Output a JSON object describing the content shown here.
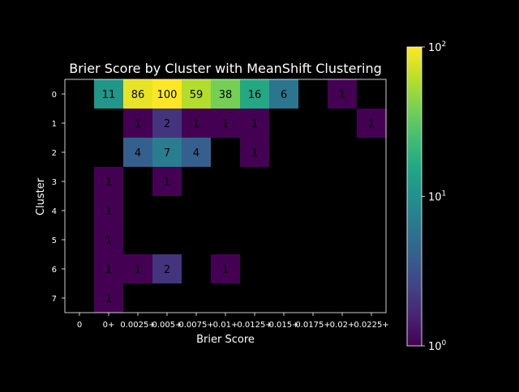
{
  "chart_data": {
    "type": "heatmap",
    "title": "Brier Score by Cluster with MeanShift Clustering",
    "xlabel": "Brier Score",
    "ylabel": "Cluster",
    "x_categories": [
      "0",
      "0+",
      "0.0025+",
      "0.005+",
      "0.0075+",
      "0.01+",
      "0.0125+",
      "0.015+",
      "0.0175+",
      "0.02+",
      "0.0225+"
    ],
    "y_categories": [
      "0",
      "1",
      "2",
      "3",
      "4",
      "5",
      "6",
      "7"
    ],
    "values": [
      [
        0,
        11,
        86,
        100,
        59,
        38,
        16,
        6,
        0,
        1,
        0
      ],
      [
        0,
        0,
        1,
        2,
        1,
        1,
        1,
        0,
        0,
        0,
        1
      ],
      [
        0,
        0,
        4,
        7,
        4,
        0,
        1,
        0,
        0,
        0,
        0
      ],
      [
        0,
        1,
        0,
        1,
        0,
        0,
        0,
        0,
        0,
        0,
        0
      ],
      [
        0,
        1,
        0,
        0,
        0,
        0,
        0,
        0,
        0,
        0,
        0
      ],
      [
        0,
        1,
        0,
        0,
        0,
        0,
        0,
        0,
        0,
        0,
        0
      ],
      [
        0,
        1,
        1,
        2,
        0,
        1,
        0,
        0,
        0,
        0,
        0
      ],
      [
        0,
        1,
        0,
        0,
        0,
        0,
        0,
        0,
        0,
        0,
        0
      ]
    ],
    "color_scale": "log",
    "colormap": "viridis",
    "zero_color": "#000000",
    "colorbar": {
      "range": [
        1,
        100
      ],
      "tick_labels": [
        {
          "base": "10",
          "exp": "0"
        },
        {
          "base": "10",
          "exp": "1"
        },
        {
          "base": "10",
          "exp": "2"
        }
      ]
    },
    "colors": {
      "background": "#000000",
      "text": "#ffffff",
      "cell_text": "#000000"
    }
  }
}
